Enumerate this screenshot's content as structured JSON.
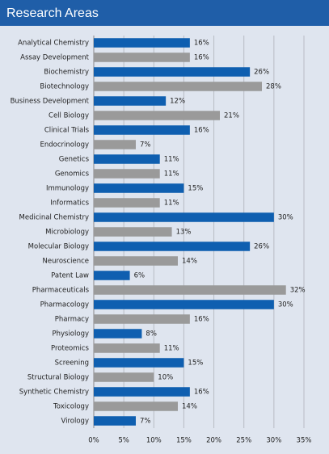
{
  "chart_data": {
    "type": "bar",
    "orientation": "horizontal",
    "title": "Research Areas",
    "categories": [
      "Analytical Chemistry",
      "Assay Development",
      "Biochemistry",
      "Biotechnology",
      "Business Development",
      "Cell Biology",
      "Clinical Trials",
      "Endocrinology",
      "Genetics",
      "Genomics",
      "Immunology",
      "Informatics",
      "Medicinal Chemistry",
      "Microbiology",
      "Molecular Biology",
      "Neuroscience",
      "Patent Law",
      "Pharmaceuticals",
      "Pharmacology",
      "Pharmacy",
      "Physiology",
      "Proteomics",
      "Screening",
      "Structural Biology",
      "Synthetic Chemistry",
      "Toxicology",
      "Virology"
    ],
    "values": [
      16,
      16,
      26,
      28,
      12,
      21,
      16,
      7,
      11,
      11,
      15,
      11,
      30,
      13,
      26,
      14,
      6,
      32,
      30,
      16,
      8,
      11,
      15,
      10,
      16,
      14,
      7
    ],
    "value_labels": [
      "16%",
      "16%",
      "26%",
      "28%",
      "12%",
      "21%",
      "16%",
      "7%",
      "11%",
      "11%",
      "15%",
      "11%",
      "30%",
      "13%",
      "26%",
      "14%",
      "6%",
      "32%",
      "30%",
      "16%",
      "8%",
      "11%",
      "15%",
      "10%",
      "16%",
      "14%",
      "7%"
    ],
    "colors": [
      "#0f5fb0",
      "#9a9a9a"
    ],
    "xlim": [
      0,
      35
    ],
    "xticks": [
      {
        "value": 0,
        "label": "0%"
      },
      {
        "value": 5,
        "label": "5%"
      },
      {
        "value": 10,
        "label": "10%"
      },
      {
        "value": 15,
        "label": "15%"
      },
      {
        "value": 20,
        "label": "20%"
      },
      {
        "value": 25,
        "label": "25%"
      },
      {
        "value": 30,
        "label": "30%"
      },
      {
        "value": 35,
        "label": "35%"
      }
    ],
    "grid": true
  }
}
